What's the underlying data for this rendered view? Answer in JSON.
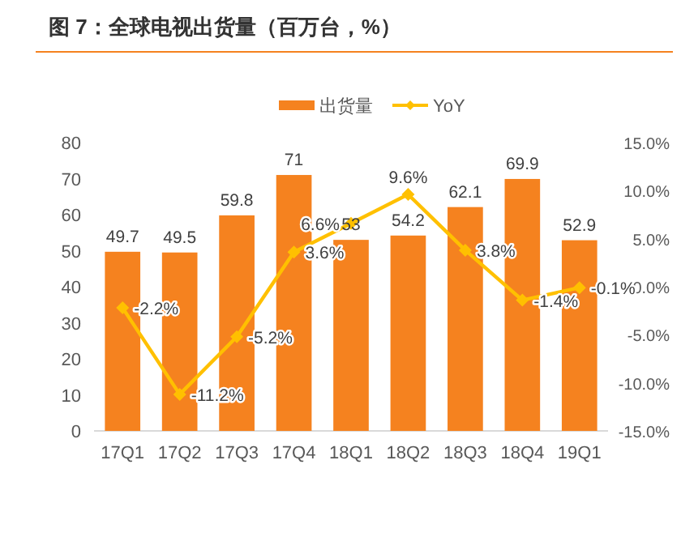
{
  "chart_data": {
    "type": "bar",
    "title": "图 7：全球电视出货量（百万台，%）",
    "categories": [
      "17Q1",
      "17Q2",
      "17Q3",
      "17Q4",
      "18Q1",
      "18Q2",
      "18Q3",
      "18Q4",
      "19Q1"
    ],
    "series": [
      {
        "name": "出货量",
        "color": "#f5821f",
        "values": [
          49.7,
          49.5,
          59.8,
          71,
          53,
          54.2,
          62.1,
          69.9,
          52.9
        ],
        "value_labels": [
          "49.7",
          "49.5",
          "59.8",
          "71",
          "53",
          "54.2",
          "62.1",
          "69.9",
          "52.9"
        ]
      },
      {
        "name": "YoY",
        "type": "line",
        "axis": "y2",
        "color": "#ffc000",
        "values": [
          -2.2,
          -11.2,
          -5.2,
          3.6,
          6.6,
          9.6,
          3.8,
          -1.4,
          -0.1
        ],
        "value_labels": [
          "-2.2%",
          "-11.2%",
          "-5.2%",
          "3.6%",
          "6.6%",
          "9.6%",
          "3.8%",
          "-1.4%",
          "-0.1%"
        ]
      }
    ],
    "ylim": [
      0,
      80
    ],
    "yticks": [
      0,
      10,
      20,
      30,
      40,
      50,
      60,
      70,
      80
    ],
    "y2lim": [
      -15,
      15
    ],
    "y2ticks": [
      {
        "value": -15,
        "label": "-15.0%"
      },
      {
        "value": -10,
        "label": "-10.0%"
      },
      {
        "value": -5,
        "label": "-5.0%"
      },
      {
        "value": 0,
        "label": "0.0%"
      },
      {
        "value": 5,
        "label": "5.0%"
      },
      {
        "value": 10,
        "label": "10.0%"
      },
      {
        "value": 15,
        "label": "15.0%"
      }
    ],
    "marker": "diamond",
    "legend": "top",
    "grid": false
  }
}
